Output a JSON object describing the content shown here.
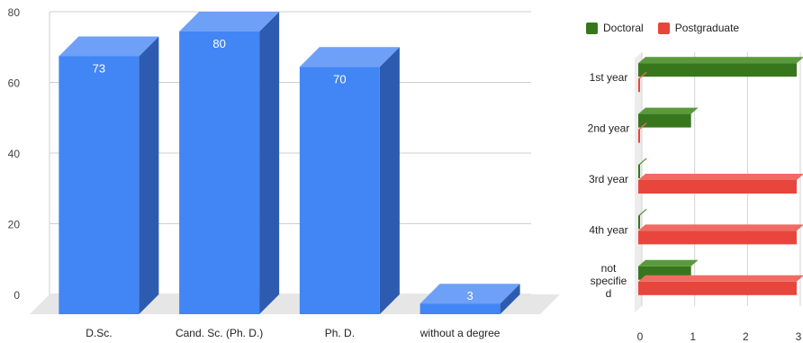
{
  "chart_data": [
    {
      "type": "bar",
      "categories": [
        "D.Sc.",
        "Cand. Sc. (Ph. D.)",
        "Ph. D.",
        "without a degree"
      ],
      "values": [
        73,
        80,
        70,
        3
      ],
      "data_labels": [
        "73",
        "80",
        "70",
        "3"
      ],
      "y_ticks": [
        0,
        20,
        40,
        60,
        80
      ],
      "ylim": [
        0,
        80
      ],
      "grid": true,
      "style": "3d",
      "colors": {
        "front": "#4285f4",
        "top": "#6ea0f7",
        "side": "#2d5bb0",
        "floor": "#e6e6e6"
      }
    },
    {
      "type": "bar",
      "orientation": "horizontal",
      "categories": [
        "1st year",
        "2nd year",
        "3rd year",
        "4th year",
        "not specified"
      ],
      "series": [
        {
          "name": "Doctoral",
          "values": [
            3,
            1,
            0,
            0,
            1
          ],
          "color": "#38761d",
          "top_color": "#5a9a3c"
        },
        {
          "name": "Postgraduate",
          "values": [
            0,
            0,
            3,
            3,
            3
          ],
          "color": "#e8453c",
          "top_color": "#f06b63"
        }
      ],
      "x_ticks": [
        0,
        1,
        2,
        3
      ],
      "xlim": [
        0,
        3
      ],
      "grid": true,
      "style": "3d",
      "legend_position": "top"
    }
  ]
}
